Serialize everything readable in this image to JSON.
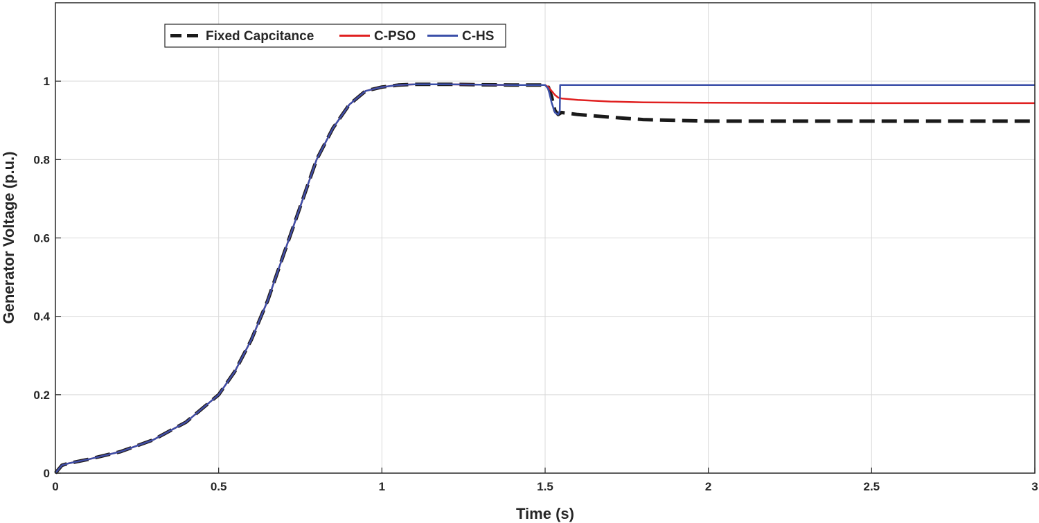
{
  "chart_data": {
    "type": "line",
    "title": "",
    "xlabel": "Time (s)",
    "ylabel": "Generator Voltage (p.u.)",
    "xlim": [
      0,
      3
    ],
    "ylim": [
      0,
      1.2
    ],
    "xticks": [
      "0",
      "0.5",
      "1",
      "1.5",
      "2",
      "2.5",
      "3"
    ],
    "yticks": [
      "0",
      "0.2",
      "0.4",
      "0.6",
      "0.8",
      "1"
    ],
    "grid": true,
    "legend_position": "top-left",
    "series": [
      {
        "name": "Fixed Capcitance",
        "color": "#1a1a1a",
        "style": "dashed",
        "x": [
          0,
          0.02,
          0.04,
          0.1,
          0.2,
          0.3,
          0.4,
          0.5,
          0.55,
          0.6,
          0.65,
          0.7,
          0.75,
          0.8,
          0.85,
          0.9,
          0.95,
          1.0,
          1.05,
          1.1,
          1.2,
          1.3,
          1.4,
          1.5,
          1.51,
          1.52,
          1.53,
          1.54,
          1.55,
          1.6,
          1.7,
          1.8,
          2.0,
          2.5,
          3.0
        ],
        "y": [
          0,
          0.02,
          0.025,
          0.035,
          0.055,
          0.085,
          0.13,
          0.2,
          0.26,
          0.34,
          0.44,
          0.56,
          0.68,
          0.8,
          0.88,
          0.94,
          0.975,
          0.985,
          0.99,
          0.992,
          0.992,
          0.991,
          0.99,
          0.99,
          0.985,
          0.96,
          0.925,
          0.915,
          0.92,
          0.915,
          0.908,
          0.902,
          0.898,
          0.898,
          0.898
        ]
      },
      {
        "name": "C-PSO",
        "color": "#e02020",
        "style": "solid",
        "x": [
          0,
          0.02,
          0.04,
          0.1,
          0.2,
          0.3,
          0.4,
          0.5,
          0.55,
          0.6,
          0.65,
          0.7,
          0.75,
          0.8,
          0.85,
          0.9,
          0.95,
          1.0,
          1.05,
          1.1,
          1.2,
          1.3,
          1.4,
          1.5,
          1.51,
          1.52,
          1.53,
          1.54,
          1.55,
          1.6,
          1.7,
          1.8,
          2.0,
          2.5,
          3.0
        ],
        "y": [
          0,
          0.02,
          0.025,
          0.035,
          0.055,
          0.085,
          0.13,
          0.2,
          0.26,
          0.34,
          0.44,
          0.56,
          0.68,
          0.8,
          0.88,
          0.94,
          0.975,
          0.985,
          0.99,
          0.992,
          0.992,
          0.991,
          0.99,
          0.99,
          0.985,
          0.975,
          0.965,
          0.958,
          0.956,
          0.952,
          0.948,
          0.946,
          0.945,
          0.944,
          0.944
        ]
      },
      {
        "name": "C-HS",
        "color": "#3b4fa8",
        "style": "solid",
        "x": [
          0,
          0.02,
          0.04,
          0.1,
          0.2,
          0.3,
          0.4,
          0.5,
          0.55,
          0.6,
          0.65,
          0.7,
          0.75,
          0.8,
          0.85,
          0.9,
          0.95,
          1.0,
          1.05,
          1.1,
          1.2,
          1.3,
          1.4,
          1.5,
          1.51,
          1.52,
          1.53,
          1.54,
          1.545,
          1.546,
          1.6,
          2.0,
          2.5,
          3.0
        ],
        "y": [
          0,
          0.02,
          0.025,
          0.035,
          0.055,
          0.085,
          0.13,
          0.2,
          0.26,
          0.34,
          0.44,
          0.56,
          0.68,
          0.8,
          0.88,
          0.94,
          0.975,
          0.985,
          0.99,
          0.992,
          0.992,
          0.991,
          0.99,
          0.99,
          0.98,
          0.945,
          0.92,
          0.915,
          0.925,
          0.99,
          0.99,
          0.99,
          0.99,
          0.99
        ]
      }
    ]
  }
}
